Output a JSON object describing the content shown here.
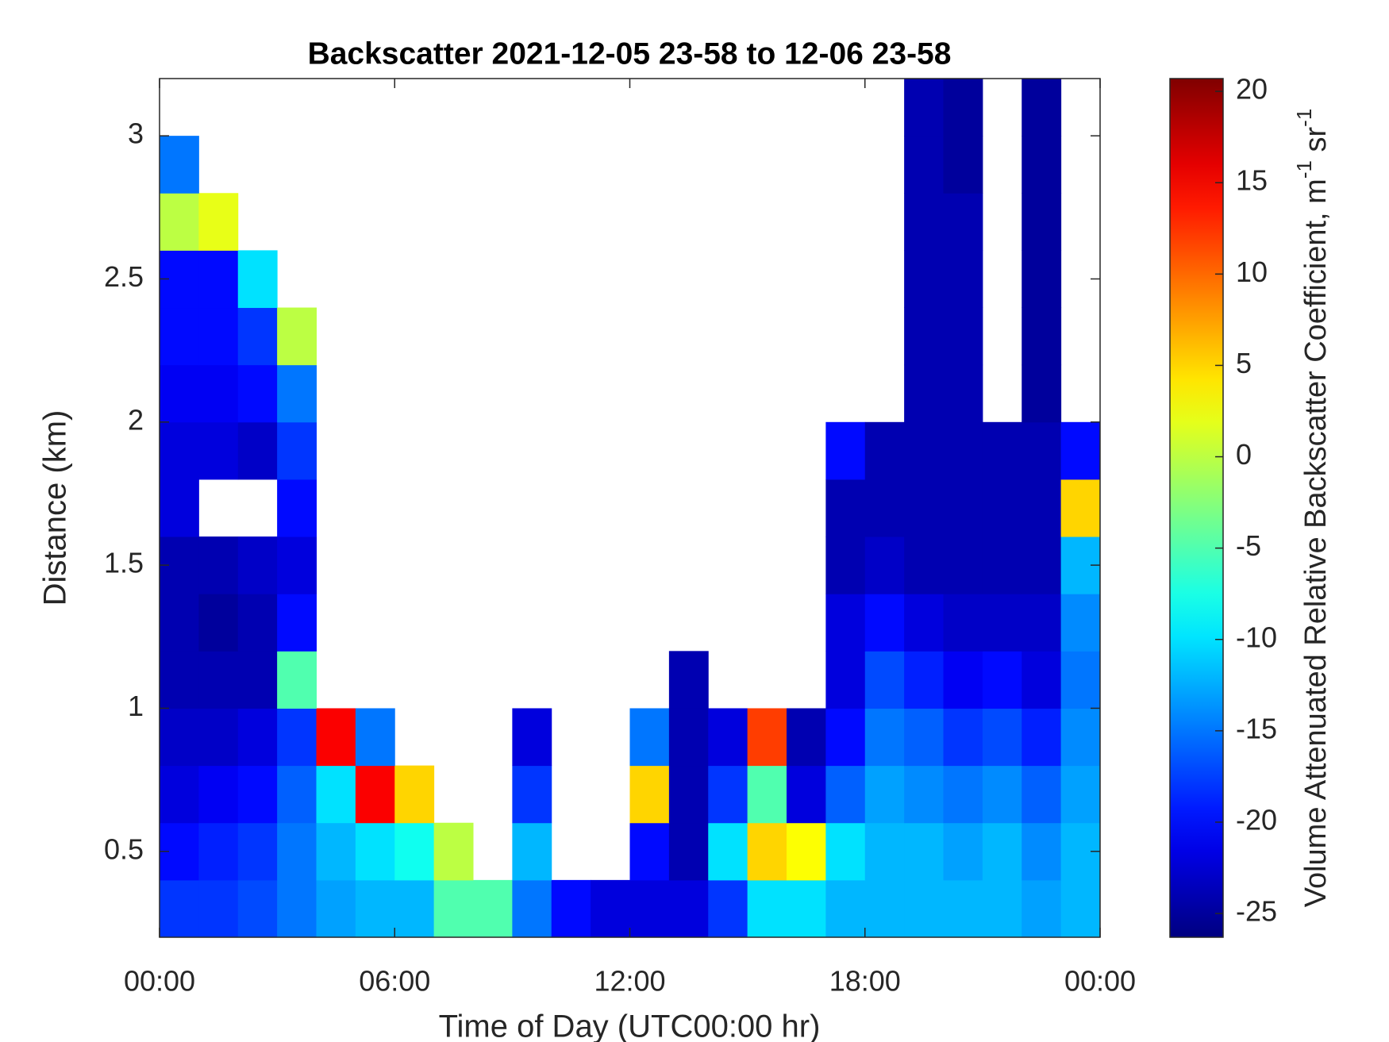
{
  "chart_data": {
    "type": "heatmap",
    "title": "Backscatter 2021-12-05 23-58 to 12-06 23-58",
    "x_label": "Time of Day (UTC00:00 hr)",
    "y_label": "Distance (km)",
    "colorbar_label": [
      "Volume Attenuated Relative Backscatter Coefficient, m",
      "-1",
      " sr",
      "-1"
    ],
    "colormap": "jet",
    "xbins": [
      0,
      1,
      2,
      3,
      4,
      5,
      6,
      7,
      8,
      9,
      10,
      11,
      12,
      13,
      14,
      15,
      16,
      17,
      18,
      19,
      20,
      21,
      22,
      23,
      24
    ],
    "ybins": [
      0.2,
      0.4,
      0.6,
      0.8,
      1.0,
      1.2,
      1.4,
      1.6,
      1.8,
      2.0,
      2.2,
      2.4,
      2.6,
      2.8,
      3.0,
      3.2
    ],
    "xlim": [
      0,
      24
    ],
    "xticks": [
      {
        "value": 0,
        "label": "00:00"
      },
      {
        "value": 6,
        "label": "06:00"
      },
      {
        "value": 12,
        "label": "12:00"
      },
      {
        "value": 18,
        "label": "18:00"
      },
      {
        "value": 24,
        "label": "00:00"
      }
    ],
    "ylim": [
      0.2,
      3.2
    ],
    "yticks": [
      0.5,
      1,
      1.5,
      2,
      2.5,
      3
    ],
    "clim": [
      -26.3,
      20.7
    ],
    "cticks": [
      -25,
      -20,
      -15,
      -10,
      -5,
      0,
      5,
      10,
      15,
      20
    ],
    "values": [
      [
        -18,
        -18,
        -17,
        -15,
        -13,
        -12,
        -12,
        -5,
        -5,
        -15,
        -20,
        -22,
        -22,
        -22,
        -18,
        -10,
        -10,
        -12,
        -12,
        -12,
        -12,
        -12,
        -13,
        -12
      ],
      [
        -20,
        -19,
        -18,
        -15,
        -12,
        -10,
        -8,
        0,
        null,
        -12,
        null,
        null,
        -20,
        -24,
        -10,
        5,
        3,
        -10,
        -12,
        -12,
        -13,
        -12,
        -14,
        -12
      ],
      [
        -22,
        -21,
        -20,
        -16,
        -10,
        15,
        5,
        null,
        null,
        -18,
        null,
        null,
        5,
        -24,
        -18,
        -5,
        -22,
        -16,
        -13,
        -14,
        -15,
        -14,
        -16,
        -13
      ],
      [
        -23,
        -23,
        -22,
        -18,
        15,
        -15,
        null,
        null,
        null,
        -22,
        null,
        null,
        -15,
        -24,
        -22,
        12,
        -24,
        -20,
        -15,
        -16,
        -18,
        -17,
        -19,
        -14
      ],
      [
        -24,
        -24,
        -24,
        -5,
        null,
        null,
        null,
        null,
        null,
        null,
        null,
        null,
        null,
        -24,
        null,
        null,
        null,
        -22,
        -17,
        -19,
        -21,
        -20,
        -22,
        -15
      ],
      [
        -24,
        -25,
        -24,
        -20,
        null,
        null,
        null,
        null,
        null,
        null,
        null,
        null,
        null,
        null,
        null,
        null,
        null,
        -22,
        -20,
        -22,
        -23,
        -23,
        -23,
        -14
      ],
      [
        -24,
        -24,
        -23,
        -22,
        null,
        null,
        null,
        null,
        null,
        null,
        null,
        null,
        null,
        null,
        null,
        null,
        null,
        -24,
        -23,
        -24,
        -24,
        -24,
        -24,
        -12
      ],
      [
        -22,
        null,
        null,
        -20,
        null,
        null,
        null,
        null,
        null,
        null,
        null,
        null,
        null,
        null,
        null,
        null,
        null,
        -24,
        -24,
        -24,
        -24,
        -24,
        -24,
        5
      ],
      [
        -22,
        -22,
        -23,
        -18,
        null,
        null,
        null,
        null,
        null,
        null,
        null,
        null,
        null,
        null,
        null,
        null,
        null,
        -20,
        -24,
        -24,
        -24,
        -24,
        -24,
        -20
      ],
      [
        -21,
        -21,
        -20,
        -15,
        null,
        null,
        null,
        null,
        null,
        null,
        null,
        null,
        null,
        null,
        null,
        null,
        null,
        null,
        null,
        -24,
        -24,
        null,
        -25,
        null
      ],
      [
        -20,
        -20,
        -18,
        0,
        null,
        null,
        null,
        null,
        null,
        null,
        null,
        null,
        null,
        null,
        null,
        null,
        null,
        null,
        null,
        -24,
        -24,
        null,
        -25,
        null
      ],
      [
        -20,
        -20,
        -10,
        null,
        null,
        null,
        null,
        null,
        null,
        null,
        null,
        null,
        null,
        null,
        null,
        null,
        null,
        null,
        null,
        -24,
        -24,
        null,
        -25,
        null
      ],
      [
        0,
        2,
        null,
        null,
        null,
        null,
        null,
        null,
        null,
        null,
        null,
        null,
        null,
        null,
        null,
        null,
        null,
        null,
        null,
        -24,
        -24,
        null,
        -25,
        null
      ],
      [
        -15,
        null,
        null,
        null,
        null,
        null,
        null,
        null,
        null,
        null,
        null,
        null,
        null,
        null,
        null,
        null,
        null,
        null,
        null,
        -24,
        -25,
        null,
        -25,
        null
      ],
      [
        null,
        null,
        null,
        null,
        null,
        null,
        null,
        null,
        null,
        null,
        null,
        null,
        null,
        null,
        null,
        null,
        null,
        null,
        null,
        -24,
        -25,
        null,
        -25,
        null
      ]
    ]
  }
}
